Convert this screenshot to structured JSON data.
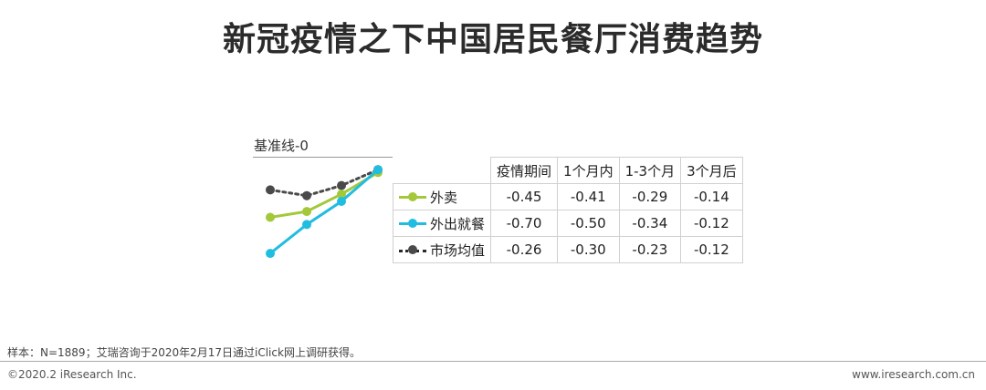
{
  "title": "新冠疫情之下中国居民餐厅消费趋势",
  "baseline_label": "基准线-0",
  "chart_data": {
    "type": "line",
    "categories": [
      "疫情期间",
      "1个月内",
      "1-3个月",
      "3个月后"
    ],
    "series": [
      {
        "name": "外卖",
        "values": [
          -0.45,
          -0.41,
          -0.29,
          -0.14
        ],
        "color": "#a3c83a",
        "style": "solid"
      },
      {
        "name": "外出就餐",
        "values": [
          -0.7,
          -0.5,
          -0.34,
          -0.12
        ],
        "color": "#21bde0",
        "style": "solid"
      },
      {
        "name": "市场均值",
        "values": [
          -0.26,
          -0.3,
          -0.23,
          -0.12
        ],
        "color": "#4a4a4a",
        "style": "dotted"
      }
    ],
    "ylim": [
      -0.75,
      -0.1
    ]
  },
  "table": {
    "headers": [
      "疫情期间",
      "1个月内",
      "1-3个月",
      "3个月后"
    ],
    "rows": [
      {
        "name": "外卖",
        "values": [
          "-0.45",
          "-0.41",
          "-0.29",
          "-0.14"
        ]
      },
      {
        "name": "外出就餐",
        "values": [
          "-0.70",
          "-0.50",
          "-0.34",
          "-0.12"
        ]
      },
      {
        "name": "市场均值",
        "values": [
          "-0.26",
          "-0.30",
          "-0.23",
          "-0.12"
        ]
      }
    ]
  },
  "footer": {
    "sample_note": "样本：N=1889；艾瑞咨询于2020年2月17日通过iClick网上调研获得。",
    "copyright": "©2020.2 iResearch Inc.",
    "website": "www.iresearch.com.cn"
  }
}
